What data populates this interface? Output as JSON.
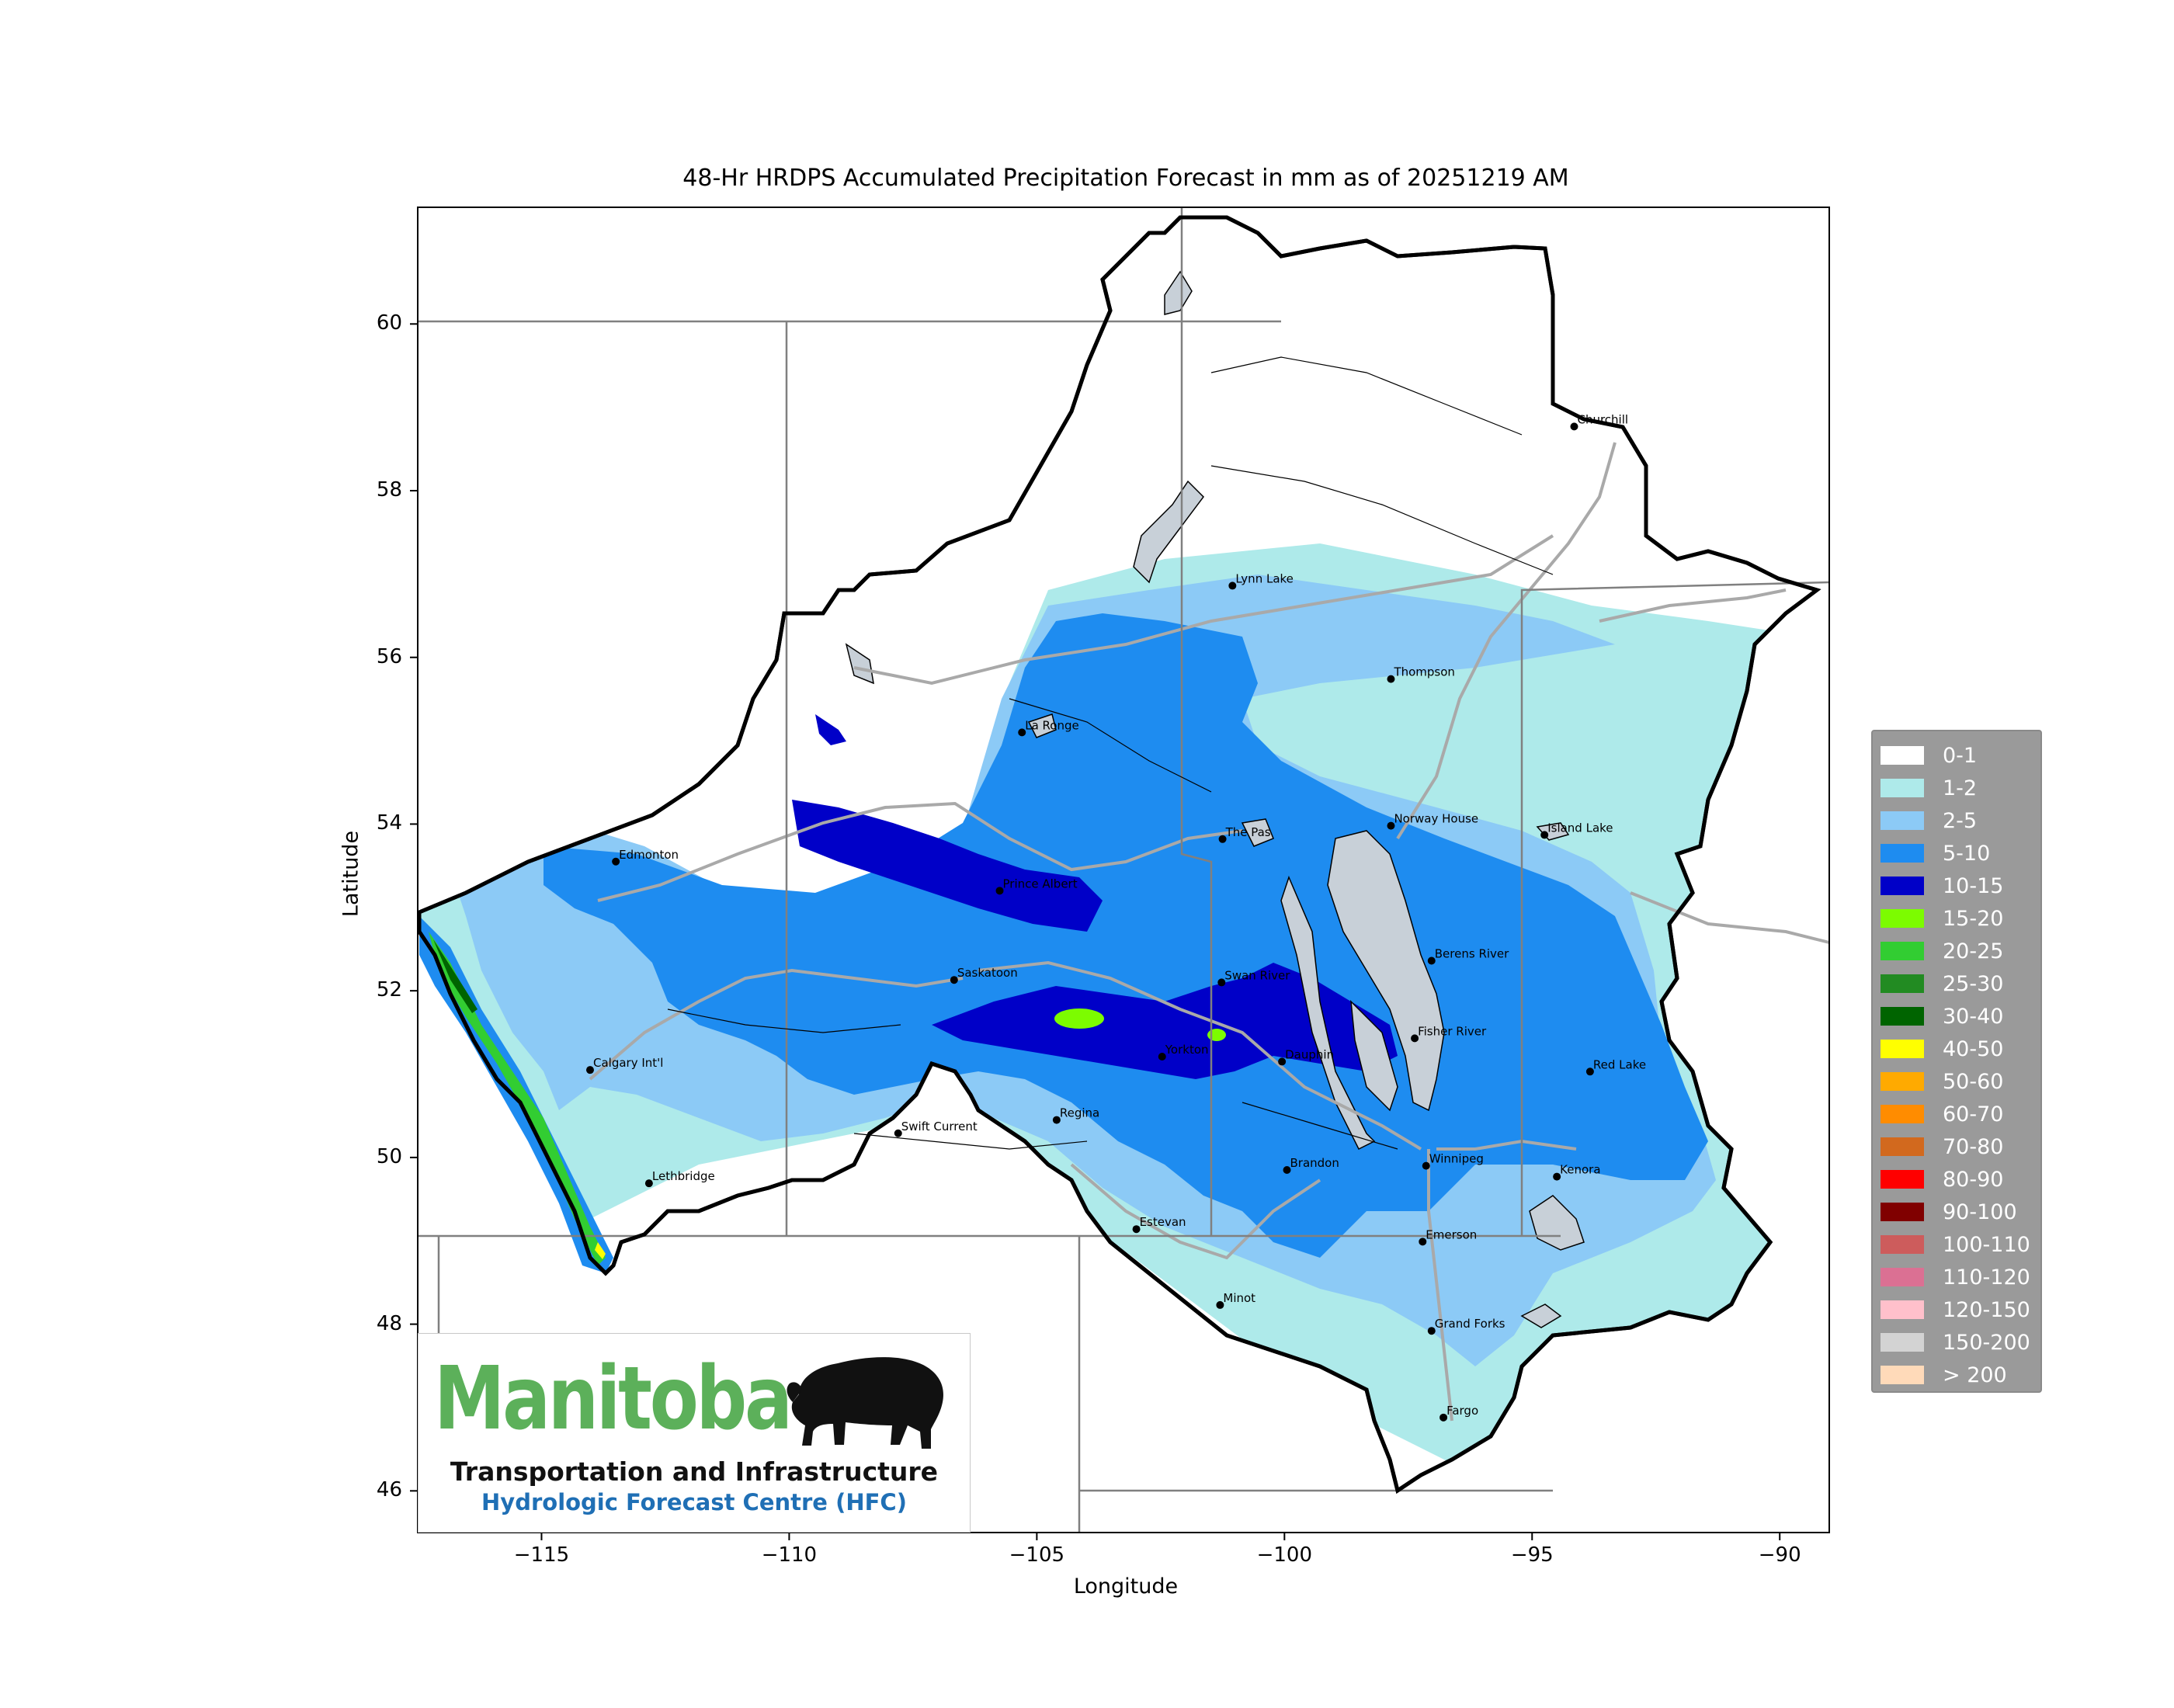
{
  "map": {
    "title": "48-Hr HRDPS Accumulated Precipitation Forecast in mm as of 20251219 AM",
    "xlabel": "Longitude",
    "ylabel": "Latitude",
    "extent": {
      "lon_min": -117.5,
      "lon_max": -89.0,
      "lat_min": 45.5,
      "lat_max": 61.4
    },
    "x_ticks": [
      "−115",
      "−110",
      "−105",
      "−100",
      "−95",
      "−90"
    ],
    "y_ticks": [
      "60",
      "58",
      "56",
      "54",
      "52",
      "50",
      "48",
      "46"
    ],
    "cities": [
      {
        "name": "Churchill",
        "lon": -94.15,
        "lat": 58.77
      },
      {
        "name": "Lynn Lake",
        "lon": -101.05,
        "lat": 56.86
      },
      {
        "name": "Thompson",
        "lon": -97.85,
        "lat": 55.74
      },
      {
        "name": "La Ronge",
        "lon": -105.3,
        "lat": 55.1
      },
      {
        "name": "The Pas",
        "lon": -101.25,
        "lat": 53.82
      },
      {
        "name": "Norway House",
        "lon": -97.85,
        "lat": 53.98
      },
      {
        "name": "Island Lake",
        "lon": -94.75,
        "lat": 53.87
      },
      {
        "name": "Edmonton",
        "lon": -113.5,
        "lat": 53.55
      },
      {
        "name": "Prince Albert",
        "lon": -105.75,
        "lat": 53.2
      },
      {
        "name": "Berens River",
        "lon": -97.03,
        "lat": 52.36
      },
      {
        "name": "Saskatoon",
        "lon": -106.67,
        "lat": 52.13
      },
      {
        "name": "Swan River",
        "lon": -101.27,
        "lat": 52.1
      },
      {
        "name": "Fisher River",
        "lon": -97.37,
        "lat": 51.43
      },
      {
        "name": "Red Lake",
        "lon": -93.83,
        "lat": 51.03
      },
      {
        "name": "Yorkton",
        "lon": -102.47,
        "lat": 51.21
      },
      {
        "name": "Dauphin",
        "lon": -100.05,
        "lat": 51.15
      },
      {
        "name": "Calgary Int'l",
        "lon": -114.02,
        "lat": 51.05
      },
      {
        "name": "Swift Current",
        "lon": -107.8,
        "lat": 50.29
      },
      {
        "name": "Regina",
        "lon": -104.6,
        "lat": 50.45
      },
      {
        "name": "Brandon",
        "lon": -99.95,
        "lat": 49.85
      },
      {
        "name": "Winnipeg",
        "lon": -97.14,
        "lat": 49.9
      },
      {
        "name": "Kenora",
        "lon": -94.5,
        "lat": 49.77
      },
      {
        "name": "Lethbridge",
        "lon": -112.83,
        "lat": 49.69
      },
      {
        "name": "Estevan",
        "lon": -102.99,
        "lat": 49.14
      },
      {
        "name": "Emerson",
        "lon": -97.21,
        "lat": 48.99
      },
      {
        "name": "Minot",
        "lon": -101.3,
        "lat": 48.23
      },
      {
        "name": "Grand Forks",
        "lon": -97.03,
        "lat": 47.92
      },
      {
        "name": "Fargo",
        "lon": -96.79,
        "lat": 46.88
      }
    ]
  },
  "legend": [
    {
      "label": "0-1",
      "color": "#ffffff"
    },
    {
      "label": "1-2",
      "color": "#aeeaea"
    },
    {
      "label": "2-5",
      "color": "#8ccaf6"
    },
    {
      "label": "5-10",
      "color": "#1e8cf0"
    },
    {
      "label": "10-15",
      "color": "#0000c8"
    },
    {
      "label": "15-20",
      "color": "#7cfc00"
    },
    {
      "label": "20-25",
      "color": "#32cd32"
    },
    {
      "label": "25-30",
      "color": "#228b22"
    },
    {
      "label": "30-40",
      "color": "#006400"
    },
    {
      "label": "40-50",
      "color": "#ffff00"
    },
    {
      "label": "50-60",
      "color": "#ffaa00"
    },
    {
      "label": "60-70",
      "color": "#ff8c00"
    },
    {
      "label": "70-80",
      "color": "#d2691e"
    },
    {
      "label": "80-90",
      "color": "#ff0000"
    },
    {
      "label": "90-100",
      "color": "#800000"
    },
    {
      "label": "100-110",
      "color": "#cd5c5c"
    },
    {
      "label": "110-120",
      "color": "#db7093"
    },
    {
      "label": "120-150",
      "color": "#ffc0cb"
    },
    {
      "label": "150-200",
      "color": "#d3d3d3"
    },
    {
      "label": "> 200",
      "color": "#ffdab9"
    }
  ],
  "logo": {
    "wordmark": "Manitoba",
    "line1": "Transportation and Infrastructure",
    "line2": "Hydrologic Forecast Centre (HFC)"
  },
  "colors": {
    "basin_outline": "#000000",
    "rivers": "#a9a9a9",
    "lakes": "#c8d0d8",
    "borders": "#808080"
  }
}
